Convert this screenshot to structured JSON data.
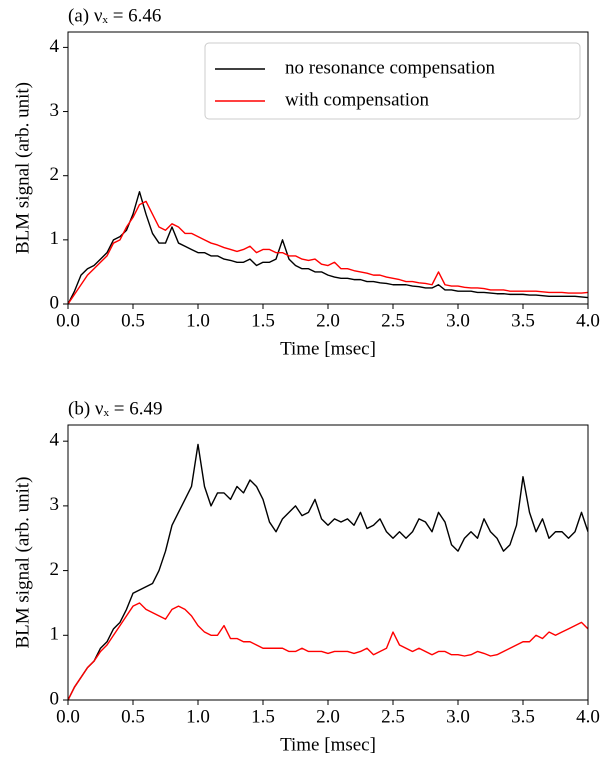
{
  "chart_data": [
    {
      "type": "line",
      "title": "(a) νₓ = 6.46",
      "xlabel": "Time [msec]",
      "ylabel": "BLM signal (arb. unit)",
      "legend": "upper right",
      "grid": false,
      "xlim": [
        0,
        4
      ],
      "ylim": [
        0,
        4.24
      ],
      "xticks": [
        {
          "value": 0,
          "label": "0.0"
        },
        0.5,
        {
          "value": 1,
          "label": "1.0"
        },
        1.5,
        {
          "value": 2,
          "label": "2.0"
        },
        2.5,
        {
          "value": 3,
          "label": "3.0"
        },
        3.5,
        {
          "value": 4,
          "label": "4.0"
        }
      ],
      "yticks": [
        0,
        1,
        2,
        3,
        4
      ],
      "x": [
        0,
        0.05,
        0.1,
        0.15,
        0.2,
        0.25,
        0.3,
        0.35,
        0.4,
        0.45,
        0.5,
        0.55,
        0.6,
        0.65,
        0.7,
        0.75,
        0.8,
        0.85,
        0.9,
        0.95,
        1,
        1.05,
        1.1,
        1.15,
        1.2,
        1.25,
        1.3,
        1.35,
        1.4,
        1.45,
        1.5,
        1.55,
        1.6,
        1.65,
        1.7,
        1.75,
        1.8,
        1.85,
        1.9,
        1.95,
        2,
        2.05,
        2.1,
        2.15,
        2.2,
        2.25,
        2.3,
        2.35,
        2.4,
        2.45,
        2.5,
        2.55,
        2.6,
        2.65,
        2.7,
        2.75,
        2.8,
        2.85,
        2.9,
        2.95,
        3,
        3.05,
        3.1,
        3.15,
        3.2,
        3.25,
        3.3,
        3.35,
        3.4,
        3.45,
        3.5,
        3.55,
        3.6,
        3.65,
        3.7,
        3.75,
        3.8,
        3.85,
        3.9,
        3.95,
        4
      ],
      "series": [
        {
          "name": "no resonance compensation",
          "color": "#000000",
          "values": [
            0,
            0.2,
            0.45,
            0.55,
            0.6,
            0.7,
            0.8,
            1.0,
            1.05,
            1.15,
            1.4,
            1.75,
            1.4,
            1.1,
            0.95,
            0.95,
            1.2,
            0.95,
            0.9,
            0.85,
            0.8,
            0.8,
            0.75,
            0.75,
            0.7,
            0.68,
            0.65,
            0.65,
            0.7,
            0.6,
            0.65,
            0.65,
            0.7,
            1.0,
            0.7,
            0.6,
            0.55,
            0.55,
            0.5,
            0.5,
            0.45,
            0.42,
            0.4,
            0.4,
            0.38,
            0.38,
            0.35,
            0.35,
            0.33,
            0.32,
            0.3,
            0.3,
            0.3,
            0.28,
            0.27,
            0.25,
            0.25,
            0.3,
            0.22,
            0.22,
            0.2,
            0.2,
            0.2,
            0.18,
            0.18,
            0.17,
            0.16,
            0.16,
            0.15,
            0.15,
            0.15,
            0.14,
            0.14,
            0.13,
            0.12,
            0.12,
            0.12,
            0.12,
            0.12,
            0.11,
            0.1
          ]
        },
        {
          "name": "with compensation",
          "color": "#ff0000",
          "values": [
            0,
            0.15,
            0.3,
            0.45,
            0.55,
            0.65,
            0.75,
            0.95,
            1.0,
            1.2,
            1.35,
            1.55,
            1.6,
            1.4,
            1.2,
            1.15,
            1.25,
            1.2,
            1.1,
            1.1,
            1.05,
            1.0,
            0.95,
            0.92,
            0.88,
            0.85,
            0.82,
            0.85,
            0.9,
            0.8,
            0.85,
            0.85,
            0.8,
            0.8,
            0.75,
            0.75,
            0.7,
            0.68,
            0.7,
            0.62,
            0.6,
            0.65,
            0.55,
            0.55,
            0.52,
            0.5,
            0.48,
            0.45,
            0.45,
            0.42,
            0.4,
            0.38,
            0.35,
            0.35,
            0.33,
            0.32,
            0.3,
            0.5,
            0.3,
            0.28,
            0.28,
            0.26,
            0.25,
            0.25,
            0.24,
            0.22,
            0.22,
            0.22,
            0.2,
            0.2,
            0.2,
            0.2,
            0.2,
            0.19,
            0.18,
            0.18,
            0.18,
            0.17,
            0.17,
            0.17,
            0.18
          ]
        }
      ]
    },
    {
      "type": "line",
      "title": "(b) νₓ = 6.49",
      "xlabel": "Time [msec]",
      "ylabel": "BLM signal (arb. unit)",
      "grid": false,
      "xlim": [
        0,
        4
      ],
      "ylim": [
        0,
        4.25
      ],
      "xticks": [
        {
          "value": 0,
          "label": "0.0"
        },
        0.5,
        {
          "value": 1,
          "label": "1.0"
        },
        1.5,
        {
          "value": 2,
          "label": "2.0"
        },
        2.5,
        {
          "value": 3,
          "label": "3.0"
        },
        3.5,
        {
          "value": 4,
          "label": "4.0"
        }
      ],
      "yticks": [
        0,
        1,
        2,
        3,
        4
      ],
      "x": [
        0,
        0.05,
        0.1,
        0.15,
        0.2,
        0.25,
        0.3,
        0.35,
        0.4,
        0.45,
        0.5,
        0.55,
        0.6,
        0.65,
        0.7,
        0.75,
        0.8,
        0.85,
        0.9,
        0.95,
        1,
        1.05,
        1.1,
        1.15,
        1.2,
        1.25,
        1.3,
        1.35,
        1.4,
        1.45,
        1.5,
        1.55,
        1.6,
        1.65,
        1.7,
        1.75,
        1.8,
        1.85,
        1.9,
        1.95,
        2,
        2.05,
        2.1,
        2.15,
        2.2,
        2.25,
        2.3,
        2.35,
        2.4,
        2.45,
        2.5,
        2.55,
        2.6,
        2.65,
        2.7,
        2.75,
        2.8,
        2.85,
        2.9,
        2.95,
        3,
        3.05,
        3.1,
        3.15,
        3.2,
        3.25,
        3.3,
        3.35,
        3.4,
        3.45,
        3.5,
        3.55,
        3.6,
        3.65,
        3.7,
        3.75,
        3.8,
        3.85,
        3.9,
        3.95,
        4
      ],
      "series": [
        {
          "color": "#000000",
          "values": [
            0,
            0.2,
            0.35,
            0.5,
            0.6,
            0.8,
            0.9,
            1.1,
            1.2,
            1.4,
            1.65,
            1.7,
            1.75,
            1.8,
            2.0,
            2.3,
            2.7,
            2.9,
            3.1,
            3.3,
            3.95,
            3.3,
            3.0,
            3.2,
            3.2,
            3.1,
            3.3,
            3.2,
            3.4,
            3.3,
            3.1,
            2.75,
            2.6,
            2.8,
            2.9,
            3.0,
            2.85,
            2.9,
            3.1,
            2.8,
            2.7,
            2.8,
            2.75,
            2.8,
            2.7,
            2.9,
            2.65,
            2.7,
            2.8,
            2.6,
            2.5,
            2.6,
            2.5,
            2.6,
            2.8,
            2.75,
            2.6,
            2.9,
            2.75,
            2.4,
            2.3,
            2.5,
            2.6,
            2.5,
            2.8,
            2.6,
            2.5,
            2.3,
            2.4,
            2.7,
            3.45,
            2.9,
            2.6,
            2.8,
            2.5,
            2.6,
            2.6,
            2.5,
            2.6,
            2.9,
            2.6
          ]
        },
        {
          "color": "#ff0000",
          "values": [
            0,
            0.2,
            0.35,
            0.5,
            0.6,
            0.75,
            0.85,
            1.0,
            1.15,
            1.3,
            1.45,
            1.5,
            1.4,
            1.35,
            1.3,
            1.25,
            1.4,
            1.45,
            1.4,
            1.3,
            1.15,
            1.05,
            1.0,
            1.0,
            1.15,
            0.95,
            0.95,
            0.9,
            0.9,
            0.85,
            0.8,
            0.8,
            0.8,
            0.8,
            0.75,
            0.75,
            0.8,
            0.75,
            0.75,
            0.75,
            0.72,
            0.75,
            0.75,
            0.75,
            0.72,
            0.75,
            0.8,
            0.7,
            0.75,
            0.8,
            1.05,
            0.85,
            0.8,
            0.75,
            0.8,
            0.75,
            0.7,
            0.75,
            0.75,
            0.7,
            0.7,
            0.68,
            0.7,
            0.75,
            0.72,
            0.68,
            0.7,
            0.75,
            0.8,
            0.85,
            0.9,
            0.9,
            1.0,
            0.95,
            1.05,
            1.0,
            1.05,
            1.1,
            1.15,
            1.2,
            1.1
          ]
        }
      ]
    }
  ]
}
